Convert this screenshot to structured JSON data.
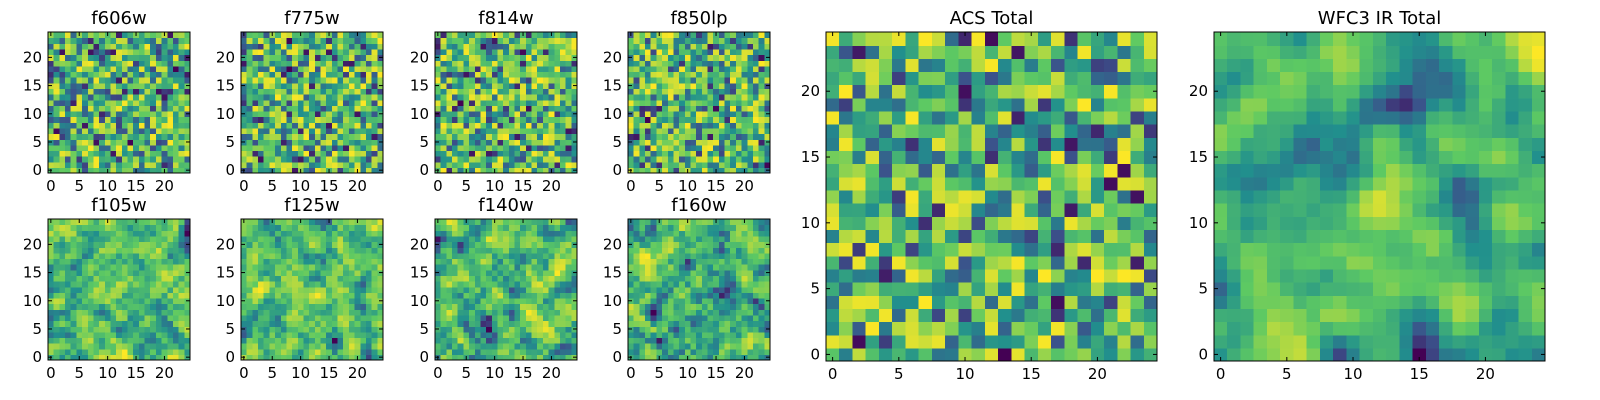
{
  "figure": {
    "colormap": [
      "#440154",
      "#3b528b",
      "#21908d",
      "#5dc963",
      "#fde725"
    ],
    "background": "#ffffff"
  },
  "chart_data": [
    {
      "type": "heatmap",
      "title": "f606w",
      "grid_size": 25,
      "seed": 11,
      "smooth": 0,
      "xticks": [
        0,
        5,
        10,
        15,
        20
      ],
      "yticks": [
        0,
        5,
        10,
        15,
        20
      ],
      "xlim": [
        0,
        24
      ],
      "ylim": [
        0,
        24
      ]
    },
    {
      "type": "heatmap",
      "title": "f775w",
      "grid_size": 25,
      "seed": 23,
      "smooth": 0,
      "xticks": [
        0,
        5,
        10,
        15,
        20
      ],
      "yticks": [
        0,
        5,
        10,
        15,
        20
      ],
      "xlim": [
        0,
        24
      ],
      "ylim": [
        0,
        24
      ]
    },
    {
      "type": "heatmap",
      "title": "f814w",
      "grid_size": 25,
      "seed": 37,
      "smooth": 0,
      "xticks": [
        0,
        5,
        10,
        15,
        20
      ],
      "yticks": [
        0,
        5,
        10,
        15,
        20
      ],
      "xlim": [
        0,
        24
      ],
      "ylim": [
        0,
        24
      ]
    },
    {
      "type": "heatmap",
      "title": "f850lp",
      "grid_size": 25,
      "seed": 41,
      "smooth": 0,
      "xticks": [
        0,
        5,
        10,
        15,
        20
      ],
      "yticks": [
        0,
        5,
        10,
        15,
        20
      ],
      "xlim": [
        0,
        24
      ],
      "ylim": [
        0,
        24
      ]
    },
    {
      "type": "heatmap",
      "title": "f105w",
      "grid_size": 25,
      "seed": 53,
      "smooth": 1,
      "xticks": [
        0,
        5,
        10,
        15,
        20
      ],
      "yticks": [
        0,
        5,
        10,
        15,
        20
      ],
      "xlim": [
        0,
        24
      ],
      "ylim": [
        0,
        24
      ]
    },
    {
      "type": "heatmap",
      "title": "f125w",
      "grid_size": 25,
      "seed": 67,
      "smooth": 1,
      "xticks": [
        0,
        5,
        10,
        15,
        20
      ],
      "yticks": [
        0,
        5,
        10,
        15,
        20
      ],
      "xlim": [
        0,
        24
      ],
      "ylim": [
        0,
        24
      ]
    },
    {
      "type": "heatmap",
      "title": "f140w",
      "grid_size": 25,
      "seed": 79,
      "smooth": 1,
      "xticks": [
        0,
        5,
        10,
        15,
        20
      ],
      "yticks": [
        0,
        5,
        10,
        15,
        20
      ],
      "xlim": [
        0,
        24
      ],
      "ylim": [
        0,
        24
      ]
    },
    {
      "type": "heatmap",
      "title": "f160w",
      "grid_size": 25,
      "seed": 83,
      "smooth": 1,
      "xticks": [
        0,
        5,
        10,
        15,
        20
      ],
      "yticks": [
        0,
        5,
        10,
        15,
        20
      ],
      "xlim": [
        0,
        24
      ],
      "ylim": [
        0,
        24
      ]
    },
    {
      "type": "heatmap",
      "title": "ACS Total",
      "grid_size": 25,
      "seed": 97,
      "smooth": 0,
      "xticks": [
        0,
        5,
        10,
        15,
        20
      ],
      "yticks": [
        0,
        5,
        10,
        15,
        20
      ],
      "xlim": [
        0,
        24
      ],
      "ylim": [
        0,
        24
      ]
    },
    {
      "type": "heatmap",
      "title": "WFC3 IR Total",
      "grid_size": 25,
      "seed": 101,
      "smooth": 2,
      "xticks": [
        0,
        5,
        10,
        15,
        20
      ],
      "yticks": [
        0,
        5,
        10,
        15,
        20
      ],
      "xlim": [
        0,
        24
      ],
      "ylim": [
        0,
        24
      ]
    }
  ]
}
